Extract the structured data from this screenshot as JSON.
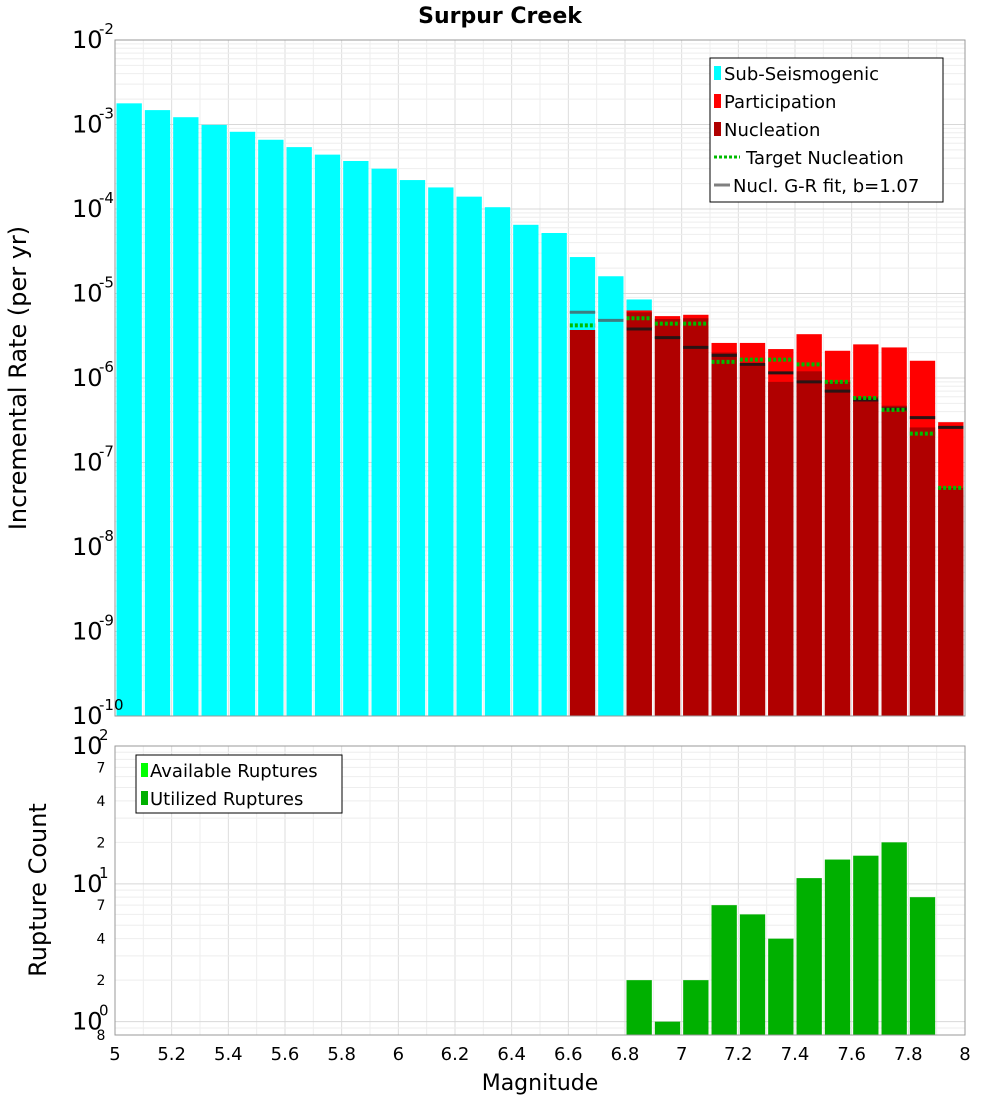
{
  "chart_data": [
    {
      "type": "bar",
      "title": "Surpur Creek",
      "xlabel": "",
      "ylabel": "Incremental Rate (per yr)",
      "xlim": [
        5,
        8
      ],
      "ylim": [
        1e-10,
        0.01
      ],
      "yscale": "log",
      "bin_width": 0.1,
      "grid": true,
      "legend_position": "top-right",
      "y_tick_labels": [
        {
          "value": 0.01,
          "base": "10",
          "exp": "-2"
        },
        {
          "value": 0.001,
          "base": "10",
          "exp": "-3"
        },
        {
          "value": 0.0001,
          "base": "10",
          "exp": "-4"
        },
        {
          "value": 1e-05,
          "base": "10",
          "exp": "-5"
        },
        {
          "value": 1e-06,
          "base": "10",
          "exp": "-6"
        },
        {
          "value": 1e-07,
          "base": "10",
          "exp": "-7"
        },
        {
          "value": 1e-08,
          "base": "10",
          "exp": "-8"
        },
        {
          "value": 1e-09,
          "base": "10",
          "exp": "-9"
        },
        {
          "value": 1e-10,
          "base": "10",
          "exp": "-10"
        }
      ],
      "series": [
        {
          "name": "Sub-Seismogenic",
          "color": "#00ffff",
          "kind": "bar",
          "x": [
            5.05,
            5.15,
            5.25,
            5.35,
            5.45,
            5.55,
            5.65,
            5.75,
            5.85,
            5.95,
            6.05,
            6.15,
            6.25,
            6.35,
            6.45,
            6.55,
            6.65,
            6.75,
            6.85
          ],
          "values": [
            0.00178,
            0.00148,
            0.00122,
            0.00099,
            0.00082,
            0.00066,
            0.00054,
            0.00044,
            0.00037,
            0.0003,
            0.00022,
            0.00018,
            0.00014,
            0.000105,
            6.5e-05,
            5.2e-05,
            2.7e-05,
            1.6e-05,
            8.5e-06
          ]
        },
        {
          "name": "Participation",
          "color": "#ff0000",
          "kind": "bar",
          "x": [
            6.85,
            6.95,
            7.05,
            7.15,
            7.25,
            7.35,
            7.45,
            7.55,
            7.65,
            7.75,
            7.85,
            7.95
          ],
          "values": [
            6.3e-06,
            5.4e-06,
            5.6e-06,
            2.6e-06,
            2.6e-06,
            2.2e-06,
            3.3e-06,
            2.1e-06,
            2.5e-06,
            2.3e-06,
            1.6e-06,
            3e-07
          ]
        },
        {
          "name": "Nucleation",
          "color": "#b00000",
          "kind": "bar",
          "x": [
            6.65,
            6.85,
            6.95,
            7.05,
            7.15,
            7.25,
            7.35,
            7.45,
            7.55,
            7.65,
            7.75,
            7.85,
            7.95
          ],
          "values": [
            3.7e-06,
            6e-06,
            5e-06,
            5.1e-06,
            2e-06,
            1.4e-06,
            9e-07,
            1.2e-06,
            9e-07,
            6e-07,
            4.7e-07,
            2.6e-07,
            5e-08
          ]
        },
        {
          "name": "Target Nucleation",
          "color": "#00bb00",
          "kind": "dotted-line",
          "x": [
            6.65,
            6.85,
            6.95,
            7.05,
            7.15,
            7.25,
            7.35,
            7.45,
            7.55,
            7.65,
            7.75,
            7.85,
            7.95
          ],
          "values": [
            4.2e-06,
            5.1e-06,
            4.4e-06,
            4.4e-06,
            1.55e-06,
            1.65e-06,
            1.65e-06,
            1.45e-06,
            9e-07,
            5.8e-07,
            4.2e-07,
            2.2e-07,
            5e-08
          ]
        },
        {
          "name": "Nucl. G-R fit, b=1.07",
          "color": "#808080",
          "kind": "line",
          "x": [
            6.65,
            6.75,
            6.85,
            6.95,
            7.05,
            7.15,
            7.25,
            7.35,
            7.45,
            7.55,
            7.65,
            7.75,
            7.85,
            7.95
          ],
          "values": [
            6e-06,
            4.8e-06,
            3.8e-06,
            3e-06,
            2.3e-06,
            1.85e-06,
            1.45e-06,
            1.15e-06,
            9e-07,
            7e-07,
            5.5e-07,
            4.3e-07,
            3.4e-07,
            2.6e-07
          ]
        }
      ]
    },
    {
      "type": "bar",
      "title": "",
      "xlabel": "Magnitude",
      "ylabel": "Rupture Count",
      "xlim": [
        5,
        8
      ],
      "ylim": [
        0.8,
        100
      ],
      "yscale": "log",
      "bin_width": 0.1,
      "grid": true,
      "legend_position": "top-left",
      "x_tick_labels": [
        "5",
        "5.2",
        "5.4",
        "5.6",
        "5.8",
        "6",
        "6.2",
        "6.4",
        "6.6",
        "6.8",
        "7",
        "7.2",
        "7.4",
        "7.6",
        "7.8",
        "8"
      ],
      "y_decade_labels": [
        {
          "value": 100,
          "base": "10",
          "exp": "2"
        },
        {
          "value": 10,
          "base": "10",
          "exp": "1"
        },
        {
          "value": 1,
          "base": "10",
          "exp": "0"
        }
      ],
      "y_minor_labels": [
        {
          "value": 70,
          "label": "7"
        },
        {
          "value": 40,
          "label": "4"
        },
        {
          "value": 20,
          "label": "2"
        },
        {
          "value": 7,
          "label": "7"
        },
        {
          "value": 4,
          "label": "4"
        },
        {
          "value": 2,
          "label": "2"
        },
        {
          "value": 0.8,
          "label": "8"
        }
      ],
      "series": [
        {
          "name": "Available Ruptures",
          "color": "#00ff00",
          "kind": "bar",
          "x": [
            6.85,
            6.95,
            7.05,
            7.15,
            7.25,
            7.35,
            7.45,
            7.55,
            7.65,
            7.75,
            7.85
          ],
          "values": [
            2,
            1,
            2,
            7,
            6,
            4,
            11,
            15,
            16,
            20,
            8
          ]
        },
        {
          "name": "Utilized Ruptures",
          "color": "#00b000",
          "kind": "bar",
          "x": [
            6.85,
            6.95,
            7.05,
            7.15,
            7.25,
            7.35,
            7.45,
            7.55,
            7.65,
            7.75,
            7.85
          ],
          "values": [
            2,
            1,
            2,
            7,
            6,
            4,
            11,
            15,
            16,
            20,
            8
          ]
        }
      ]
    }
  ]
}
